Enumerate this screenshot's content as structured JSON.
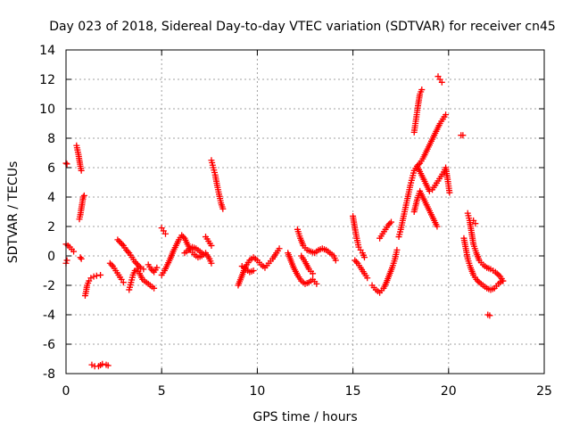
{
  "chart_data": {
    "type": "scatter",
    "title": "Day 023 of 2018, Sidereal Day-to-day VTEC variation (SDTVAR) for receiver cn45",
    "xlabel": "GPS time / hours",
    "ylabel": "SDTVAR / TECUs",
    "xlim": [
      0,
      25
    ],
    "ylim": [
      -8,
      14
    ],
    "xticks": [
      0,
      5,
      10,
      15,
      20,
      25
    ],
    "yticks": [
      -8,
      -6,
      -4,
      -2,
      0,
      2,
      4,
      6,
      8,
      10,
      12,
      14
    ],
    "grid": true,
    "marker": "plus",
    "color": "#ff0000",
    "series": [
      {
        "name": "SDTVAR",
        "segments": [
          [
            [
              0.0,
              6.3
            ],
            [
              0.05,
              6.25
            ]
          ],
          [
            [
              0.0,
              0.8
            ],
            [
              0.1,
              0.7
            ],
            [
              0.2,
              0.6
            ],
            [
              0.3,
              0.45
            ],
            [
              0.4,
              0.3
            ]
          ],
          [
            [
              0.0,
              -0.5
            ],
            [
              0.05,
              -0.3
            ]
          ],
          [
            [
              0.55,
              7.5
            ],
            [
              0.6,
              7.2
            ],
            [
              0.65,
              6.9
            ],
            [
              0.7,
              6.5
            ],
            [
              0.75,
              6.1
            ],
            [
              0.8,
              5.8
            ]
          ],
          [
            [
              0.7,
              2.5
            ],
            [
              0.75,
              2.8
            ],
            [
              0.8,
              3.2
            ],
            [
              0.85,
              3.6
            ],
            [
              0.9,
              4.0
            ],
            [
              0.95,
              4.1
            ]
          ],
          [
            [
              0.75,
              -0.1
            ],
            [
              0.8,
              -0.2
            ]
          ],
          [
            [
              1.0,
              -2.7
            ],
            [
              1.05,
              -2.4
            ],
            [
              1.1,
              -2.0
            ],
            [
              1.2,
              -1.7
            ],
            [
              1.3,
              -1.5
            ],
            [
              1.45,
              -1.4
            ],
            [
              1.6,
              -1.35
            ],
            [
              1.8,
              -1.3
            ]
          ],
          [
            [
              1.35,
              -7.4
            ],
            [
              1.5,
              -7.5
            ],
            [
              1.7,
              -7.5
            ],
            [
              1.9,
              -7.35
            ],
            [
              2.1,
              -7.4
            ],
            [
              2.2,
              -7.45
            ]
          ],
          [
            [
              2.3,
              -0.5
            ],
            [
              2.45,
              -0.7
            ],
            [
              2.6,
              -1.0
            ],
            [
              2.75,
              -1.3
            ],
            [
              2.9,
              -1.6
            ],
            [
              3.0,
              -1.8
            ]
          ],
          [
            [
              2.7,
              1.1
            ],
            [
              2.85,
              0.9
            ],
            [
              3.0,
              0.7
            ],
            [
              3.15,
              0.4
            ],
            [
              3.3,
              0.2
            ],
            [
              3.45,
              -0.1
            ],
            [
              3.6,
              -0.4
            ],
            [
              3.75,
              -0.6
            ],
            [
              3.9,
              -0.8
            ],
            [
              4.05,
              -0.9
            ]
          ],
          [
            [
              3.3,
              -2.3
            ],
            [
              3.4,
              -1.8
            ],
            [
              3.5,
              -1.3
            ],
            [
              3.6,
              -1.0
            ],
            [
              3.7,
              -0.9
            ],
            [
              3.85,
              -1.2
            ],
            [
              4.0,
              -1.6
            ],
            [
              4.2,
              -1.8
            ],
            [
              4.4,
              -2.0
            ],
            [
              4.6,
              -2.2
            ]
          ],
          [
            [
              4.3,
              -0.6
            ],
            [
              4.45,
              -0.9
            ],
            [
              4.6,
              -1.1
            ],
            [
              4.75,
              -0.8
            ]
          ],
          [
            [
              5.0,
              -1.3
            ],
            [
              5.15,
              -1.0
            ],
            [
              5.3,
              -0.6
            ],
            [
              5.45,
              -0.2
            ],
            [
              5.6,
              0.3
            ],
            [
              5.75,
              0.7
            ],
            [
              5.9,
              1.1
            ],
            [
              6.05,
              1.4
            ],
            [
              6.2,
              1.2
            ],
            [
              6.35,
              0.8
            ],
            [
              6.5,
              0.4
            ],
            [
              6.7,
              0.1
            ],
            [
              6.9,
              -0.1
            ],
            [
              7.1,
              0.0
            ],
            [
              7.3,
              0.2
            ],
            [
              7.5,
              -0.2
            ],
            [
              7.6,
              -0.5
            ]
          ],
          [
            [
              5.0,
              1.9
            ],
            [
              5.1,
              1.7
            ],
            [
              5.2,
              1.5
            ]
          ],
          [
            [
              6.2,
              0.2
            ],
            [
              6.4,
              0.4
            ],
            [
              6.6,
              0.6
            ],
            [
              6.8,
              0.5
            ],
            [
              7.0,
              0.3
            ],
            [
              7.2,
              0.1
            ]
          ],
          [
            [
              7.3,
              1.3
            ],
            [
              7.45,
              1.0
            ],
            [
              7.6,
              0.7
            ]
          ],
          [
            [
              7.6,
              6.5
            ],
            [
              7.7,
              6.0
            ],
            [
              7.8,
              5.5
            ],
            [
              7.9,
              4.8
            ],
            [
              8.0,
              4.2
            ],
            [
              8.1,
              3.6
            ],
            [
              8.2,
              3.2
            ]
          ],
          [
            [
              9.0,
              -2.0
            ],
            [
              9.15,
              -1.5
            ],
            [
              9.3,
              -1.0
            ],
            [
              9.45,
              -0.6
            ],
            [
              9.6,
              -0.3
            ],
            [
              9.8,
              -0.1
            ],
            [
              10.0,
              -0.3
            ],
            [
              10.2,
              -0.6
            ],
            [
              10.4,
              -0.8
            ],
            [
              10.6,
              -0.5
            ],
            [
              10.8,
              -0.2
            ],
            [
              11.0,
              0.2
            ],
            [
              11.15,
              0.5
            ]
          ],
          [
            [
              9.2,
              -0.7
            ],
            [
              9.4,
              -0.9
            ],
            [
              9.6,
              -1.1
            ],
            [
              9.8,
              -1.0
            ]
          ],
          [
            [
              11.6,
              0.2
            ],
            [
              11.75,
              -0.3
            ],
            [
              11.9,
              -0.8
            ],
            [
              12.1,
              -1.3
            ],
            [
              12.3,
              -1.7
            ],
            [
              12.5,
              -1.9
            ],
            [
              12.7,
              -1.8
            ],
            [
              12.9,
              -1.6
            ],
            [
              13.1,
              -1.9
            ]
          ],
          [
            [
              12.1,
              1.8
            ],
            [
              12.25,
              1.2
            ],
            [
              12.4,
              0.7
            ],
            [
              12.6,
              0.4
            ],
            [
              12.8,
              0.3
            ],
            [
              13.0,
              0.2
            ],
            [
              13.2,
              0.4
            ],
            [
              13.4,
              0.5
            ],
            [
              13.6,
              0.4
            ],
            [
              13.8,
              0.2
            ],
            [
              14.0,
              0.0
            ],
            [
              14.1,
              -0.3
            ]
          ],
          [
            [
              12.3,
              0.0
            ],
            [
              12.5,
              -0.4
            ],
            [
              12.7,
              -0.9
            ],
            [
              12.9,
              -1.2
            ]
          ],
          [
            [
              15.0,
              2.7
            ],
            [
              15.1,
              1.9
            ],
            [
              15.2,
              1.2
            ],
            [
              15.3,
              0.6
            ]
          ],
          [
            [
              15.1,
              -0.3
            ],
            [
              15.25,
              -0.5
            ],
            [
              15.4,
              -0.8
            ],
            [
              15.6,
              -1.2
            ],
            [
              15.75,
              -1.5
            ]
          ],
          [
            [
              15.4,
              0.4
            ],
            [
              15.5,
              0.2
            ],
            [
              15.6,
              -0.1
            ]
          ],
          [
            [
              16.0,
              -2.0
            ],
            [
              16.2,
              -2.3
            ],
            [
              16.4,
              -2.5
            ],
            [
              16.6,
              -2.2
            ],
            [
              16.75,
              -1.8
            ],
            [
              16.9,
              -1.3
            ],
            [
              17.05,
              -0.8
            ],
            [
              17.2,
              -0.2
            ],
            [
              17.3,
              0.4
            ]
          ],
          [
            [
              16.4,
              1.2
            ],
            [
              16.55,
              1.5
            ],
            [
              16.7,
              1.8
            ],
            [
              16.85,
              2.1
            ],
            [
              17.0,
              2.3
            ]
          ],
          [
            [
              17.4,
              1.3
            ],
            [
              17.5,
              1.8
            ],
            [
              17.6,
              2.4
            ],
            [
              17.7,
              3.0
            ],
            [
              17.8,
              3.6
            ],
            [
              17.9,
              4.2
            ],
            [
              18.0,
              4.8
            ],
            [
              18.1,
              5.3
            ],
            [
              18.2,
              5.8
            ],
            [
              18.35,
              6.1
            ],
            [
              18.5,
              6.3
            ],
            [
              18.65,
              6.6
            ],
            [
              18.8,
              7.0
            ],
            [
              18.95,
              7.4
            ],
            [
              19.1,
              7.8
            ],
            [
              19.25,
              8.2
            ],
            [
              19.4,
              8.6
            ],
            [
              19.55,
              9.0
            ],
            [
              19.7,
              9.3
            ],
            [
              19.85,
              9.6
            ]
          ],
          [
            [
              18.2,
              3.0
            ],
            [
              18.35,
              3.8
            ],
            [
              18.5,
              4.4
            ],
            [
              18.65,
              4.0
            ],
            [
              18.8,
              3.6
            ],
            [
              18.95,
              3.2
            ],
            [
              19.1,
              2.8
            ],
            [
              19.25,
              2.4
            ],
            [
              19.4,
              2.0
            ]
          ],
          [
            [
              18.4,
              6.0
            ],
            [
              18.55,
              5.6
            ],
            [
              18.7,
              5.2
            ],
            [
              18.85,
              4.8
            ],
            [
              19.0,
              4.4
            ],
            [
              19.15,
              4.5
            ],
            [
              19.3,
              4.8
            ],
            [
              19.45,
              5.1
            ],
            [
              19.6,
              5.4
            ],
            [
              19.75,
              5.7
            ],
            [
              19.85,
              6.0
            ],
            [
              19.95,
              5.2
            ],
            [
              20.05,
              4.3
            ]
          ],
          [
            [
              18.2,
              8.4
            ],
            [
              18.3,
              9.3
            ],
            [
              18.4,
              10.2
            ],
            [
              18.5,
              11.0
            ],
            [
              18.6,
              11.3
            ]
          ],
          [
            [
              19.45,
              12.2
            ],
            [
              19.55,
              12.0
            ],
            [
              19.65,
              11.8
            ]
          ],
          [
            [
              20.65,
              8.2
            ],
            [
              20.75,
              8.2
            ]
          ],
          [
            [
              20.8,
              1.2
            ],
            [
              20.9,
              0.5
            ],
            [
              21.0,
              -0.2
            ],
            [
              21.15,
              -0.8
            ],
            [
              21.3,
              -1.3
            ],
            [
              21.45,
              -1.6
            ],
            [
              21.6,
              -1.8
            ],
            [
              21.8,
              -2.0
            ],
            [
              22.0,
              -2.2
            ],
            [
              22.2,
              -2.3
            ],
            [
              22.4,
              -2.2
            ],
            [
              22.6,
              -1.9
            ],
            [
              22.8,
              -1.7
            ]
          ],
          [
            [
              21.0,
              2.9
            ],
            [
              21.1,
              2.4
            ],
            [
              21.2,
              1.6
            ],
            [
              21.3,
              0.8
            ],
            [
              21.45,
              0.2
            ],
            [
              21.6,
              -0.3
            ],
            [
              21.8,
              -0.6
            ],
            [
              22.0,
              -0.8
            ],
            [
              22.2,
              -0.9
            ],
            [
              22.45,
              -1.1
            ],
            [
              22.7,
              -1.4
            ],
            [
              22.85,
              -1.7
            ]
          ],
          [
            [
              21.3,
              2.4
            ],
            [
              21.4,
              2.2
            ]
          ],
          [
            [
              22.05,
              -4.0
            ],
            [
              22.15,
              -4.05
            ]
          ]
        ]
      }
    ]
  }
}
